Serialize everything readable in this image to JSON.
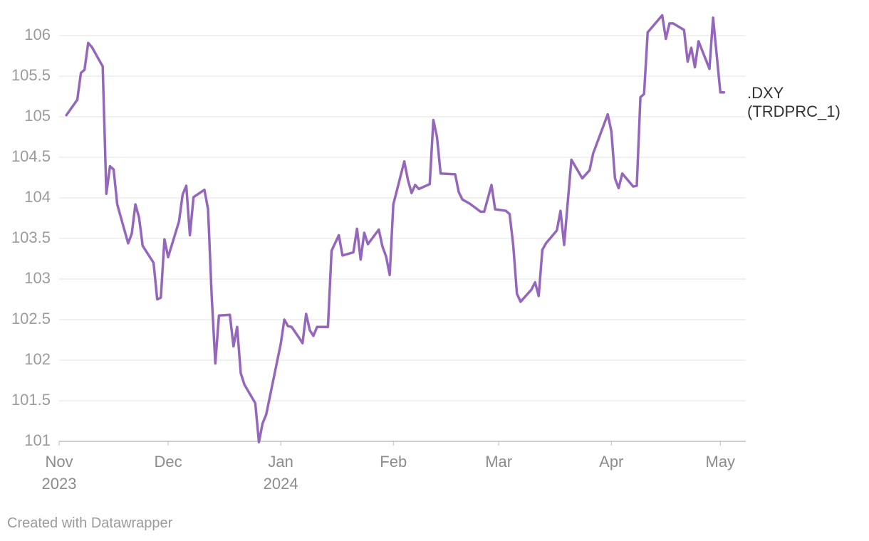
{
  "chart_data": {
    "type": "line",
    "title": "",
    "xlabel": "",
    "ylabel": "",
    "ylim": [
      101,
      106
    ],
    "y_ticks": [
      101,
      101.5,
      102,
      102.5,
      103,
      103.5,
      104,
      104.5,
      105,
      105.5,
      106
    ],
    "y_tick_labels": [
      "101",
      "101.5",
      "102",
      "102.5",
      "103",
      "103.5",
      "104",
      "104.5",
      "105",
      "105.5",
      "106"
    ],
    "x_range_days": [
      0,
      189
    ],
    "x_ticks": [
      {
        "day": 0,
        "line1": "Nov",
        "line2": "2023"
      },
      {
        "day": 30,
        "line1": "Dec",
        "line2": ""
      },
      {
        "day": 61,
        "line1": "Jan",
        "line2": "2024"
      },
      {
        "day": 92,
        "line1": "Feb",
        "line2": ""
      },
      {
        "day": 121,
        "line1": "Mar",
        "line2": ""
      },
      {
        "day": 152,
        "line1": "Apr",
        "line2": ""
      },
      {
        "day": 182,
        "line1": "May",
        "line2": ""
      }
    ],
    "grid": true,
    "series": [
      {
        "name": ".DXY (TRDPRC_1)",
        "label_line1": ".DXY",
        "label_line2": "(TRDPRC_1)",
        "color": "#9467bd",
        "points": [
          [
            2,
            105.02
          ],
          [
            5,
            105.21
          ],
          [
            6,
            105.54
          ],
          [
            7,
            105.58
          ],
          [
            8,
            105.91
          ],
          [
            9,
            105.86
          ],
          [
            12,
            105.62
          ],
          [
            13,
            104.05
          ],
          [
            14,
            104.39
          ],
          [
            15,
            104.35
          ],
          [
            16,
            103.92
          ],
          [
            19,
            103.44
          ],
          [
            20,
            103.56
          ],
          [
            21,
            103.92
          ],
          [
            22,
            103.76
          ],
          [
            23,
            103.41
          ],
          [
            26,
            103.2
          ],
          [
            27,
            102.75
          ],
          [
            28,
            102.77
          ],
          [
            29,
            103.49
          ],
          [
            30,
            103.27
          ],
          [
            33,
            103.71
          ],
          [
            34,
            104.04
          ],
          [
            35,
            104.15
          ],
          [
            36,
            103.54
          ],
          [
            37,
            104.01
          ],
          [
            40,
            104.1
          ],
          [
            41,
            103.86
          ],
          [
            42,
            102.79
          ],
          [
            43,
            101.96
          ],
          [
            44,
            102.55
          ],
          [
            47,
            102.56
          ],
          [
            48,
            102.17
          ],
          [
            49,
            102.41
          ],
          [
            50,
            101.84
          ],
          [
            51,
            101.7
          ],
          [
            54,
            101.47
          ],
          [
            55,
            100.99
          ],
          [
            56,
            101.22
          ],
          [
            57,
            101.33
          ],
          [
            61,
            102.2
          ],
          [
            62,
            102.5
          ],
          [
            63,
            102.42
          ],
          [
            64,
            102.41
          ],
          [
            66,
            102.28
          ],
          [
            67,
            102.21
          ],
          [
            68,
            102.57
          ],
          [
            69,
            102.37
          ],
          [
            70,
            102.3
          ],
          [
            71,
            102.41
          ],
          [
            74,
            102.41
          ],
          [
            75,
            103.35
          ],
          [
            77,
            103.54
          ],
          [
            78,
            103.29
          ],
          [
            81,
            103.33
          ],
          [
            82,
            103.62
          ],
          [
            83,
            103.24
          ],
          [
            84,
            103.57
          ],
          [
            85,
            103.43
          ],
          [
            88,
            103.61
          ],
          [
            89,
            103.4
          ],
          [
            90,
            103.28
          ],
          [
            91,
            103.05
          ],
          [
            92,
            103.92
          ],
          [
            95,
            104.45
          ],
          [
            96,
            104.22
          ],
          [
            97,
            104.06
          ],
          [
            98,
            104.16
          ],
          [
            99,
            104.11
          ],
          [
            102,
            104.17
          ],
          [
            103,
            104.96
          ],
          [
            104,
            104.75
          ],
          [
            105,
            104.3
          ],
          [
            109,
            104.29
          ],
          [
            110,
            104.07
          ],
          [
            111,
            103.98
          ],
          [
            113,
            103.93
          ],
          [
            116,
            103.83
          ],
          [
            117,
            103.83
          ],
          [
            119,
            104.16
          ],
          [
            120,
            103.86
          ],
          [
            123,
            103.84
          ],
          [
            124,
            103.8
          ],
          [
            125,
            103.41
          ],
          [
            126,
            102.82
          ],
          [
            127,
            102.72
          ],
          [
            130,
            102.87
          ],
          [
            131,
            102.96
          ],
          [
            132,
            102.79
          ],
          [
            133,
            103.36
          ],
          [
            134,
            103.44
          ],
          [
            137,
            103.6
          ],
          [
            138,
            103.84
          ],
          [
            139,
            103.42
          ],
          [
            140,
            103.95
          ],
          [
            141,
            104.47
          ],
          [
            144,
            104.24
          ],
          [
            146,
            104.34
          ],
          [
            147,
            104.55
          ],
          [
            151,
            105.03
          ],
          [
            152,
            104.82
          ],
          [
            153,
            104.24
          ],
          [
            154,
            104.12
          ],
          [
            155,
            104.3
          ],
          [
            158,
            104.14
          ],
          [
            159,
            104.15
          ],
          [
            160,
            105.24
          ],
          [
            161,
            105.28
          ],
          [
            162,
            106.04
          ],
          [
            166,
            106.25
          ],
          [
            167,
            105.96
          ],
          [
            168,
            106.15
          ],
          [
            169,
            106.15
          ],
          [
            172,
            106.07
          ],
          [
            173,
            105.68
          ],
          [
            174,
            105.85
          ],
          [
            175,
            105.61
          ],
          [
            176,
            105.93
          ],
          [
            179,
            105.59
          ],
          [
            180,
            106.22
          ],
          [
            182,
            105.3
          ],
          [
            183,
            105.3
          ]
        ]
      }
    ]
  },
  "footer": {
    "credit": "Created with Datawrapper"
  }
}
